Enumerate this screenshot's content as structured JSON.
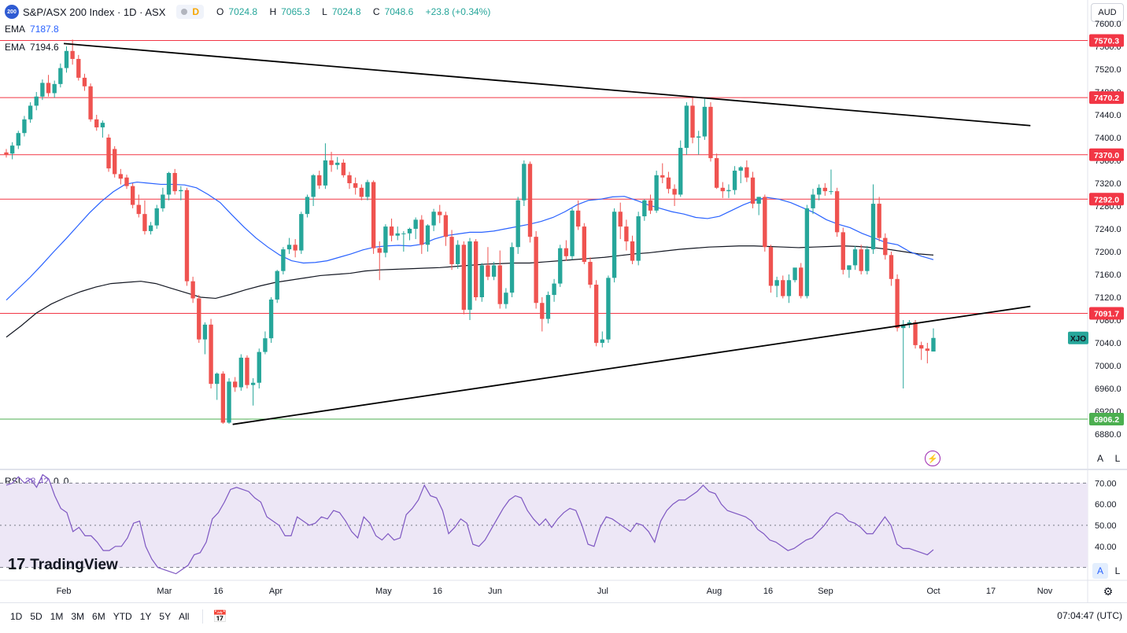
{
  "header": {
    "badge": "200",
    "title": "S&P/ASX 200 Index · 1D · ASX",
    "mode": "D",
    "open_label": "O",
    "open": "7024.8",
    "high_label": "H",
    "high": "7065.3",
    "low_label": "L",
    "low": "7024.8",
    "close_label": "C",
    "close": "7048.6",
    "change": "+23.8 (+0.34%)"
  },
  "ema_fast": {
    "label": "EMA",
    "value": "7187.8",
    "color": "#2962ff"
  },
  "ema_slow": {
    "label": "EMA",
    "value": "7194.6",
    "color": "#131722"
  },
  "rsi_legend": {
    "label": "RSI",
    "value": "38.42",
    "extra1": "0",
    "extra2": "0",
    "color": "#7e57c2"
  },
  "currency": "AUD",
  "axis_buttons": {
    "auto": "A",
    "log": "L"
  },
  "symbol_tag": "XJO",
  "brand": "TradingView",
  "ranges": [
    "1D",
    "5D",
    "1M",
    "3M",
    "6M",
    "YTD",
    "1Y",
    "5Y",
    "All"
  ],
  "clock": "07:04:47 (UTC)",
  "colors": {
    "up": "#26a69a",
    "down": "#ef5350",
    "level": "#f23645",
    "support": "#4caf50",
    "trend": "#000000",
    "rsi_band": "#ede7f6"
  },
  "chart_data": {
    "type": "candlestick",
    "y_ticks": [
      "7600.0",
      "7560.0",
      "7520.0",
      "7480.0",
      "7440.0",
      "7400.0",
      "7360.0",
      "7320.0",
      "7280.0",
      "7240.0",
      "7200.0",
      "7160.0",
      "7120.0",
      "7080.0",
      "7040.0",
      "7000.0",
      "6960.0",
      "6920.0",
      "6880.0"
    ],
    "ylim": [
      6860,
      7610
    ],
    "x_labels": [
      "Feb",
      "Mar",
      "16",
      "Apr",
      "May",
      "16",
      "Jun",
      "Jul",
      "Aug",
      "16",
      "Sep",
      "Oct",
      "17",
      "Nov"
    ],
    "resistance_levels": [
      "7570.3",
      "7470.2",
      "7370.0",
      "7292.0",
      "7091.7"
    ],
    "support_levels": [
      "6906.2"
    ],
    "last_price": "7048.6",
    "trendlines": [
      {
        "name": "upper",
        "from": {
          "date": "2023-02-01",
          "value": 7565
        },
        "to": {
          "date": "2023-10-28",
          "value": 7421
        }
      },
      {
        "name": "lower",
        "from": {
          "date": "2023-03-20",
          "value": 6897
        },
        "to": {
          "date": "2023-10-28",
          "value": 7104
        }
      }
    ],
    "candles": [
      [
        7374,
        7380,
        7365,
        7370
      ],
      [
        7372,
        7392,
        7362,
        7386
      ],
      [
        7386,
        7412,
        7380,
        7408
      ],
      [
        7408,
        7438,
        7402,
        7432
      ],
      [
        7432,
        7462,
        7426,
        7456
      ],
      [
        7456,
        7480,
        7448,
        7472
      ],
      [
        7472,
        7502,
        7466,
        7496
      ],
      [
        7496,
        7510,
        7472,
        7478
      ],
      [
        7478,
        7500,
        7470,
        7494
      ],
      [
        7494,
        7530,
        7488,
        7522
      ],
      [
        7522,
        7560,
        7514,
        7552
      ],
      [
        7552,
        7572,
        7528,
        7538
      ],
      [
        7538,
        7545,
        7500,
        7505
      ],
      [
        7505,
        7512,
        7482,
        7490
      ],
      [
        7490,
        7495,
        7428,
        7432
      ],
      [
        7432,
        7440,
        7412,
        7418
      ],
      [
        7418,
        7430,
        7400,
        7426
      ],
      [
        7400,
        7406,
        7340,
        7346
      ],
      [
        7380,
        7385,
        7330,
        7336
      ],
      [
        7336,
        7345,
        7318,
        7328
      ],
      [
        7330,
        7335,
        7310,
        7315
      ],
      [
        7315,
        7320,
        7276,
        7282
      ],
      [
        7282,
        7300,
        7260,
        7266
      ],
      [
        7266,
        7290,
        7230,
        7236
      ],
      [
        7236,
        7252,
        7230,
        7246
      ],
      [
        7246,
        7282,
        7240,
        7276
      ],
      [
        7276,
        7312,
        7270,
        7300
      ],
      [
        7300,
        7340,
        7290,
        7338
      ],
      [
        7338,
        7345,
        7300,
        7306
      ],
      [
        7306,
        7315,
        7290,
        7308
      ],
      [
        7308,
        7312,
        7140,
        7148
      ],
      [
        7148,
        7156,
        7110,
        7118
      ],
      [
        7118,
        7124,
        7040,
        7046
      ],
      [
        7046,
        7076,
        7020,
        7072
      ],
      [
        7072,
        7082,
        6960,
        6968
      ],
      [
        6968,
        6988,
        6940,
        6986
      ],
      [
        6986,
        6990,
        6898,
        6900
      ],
      [
        6900,
        6978,
        6898,
        6972
      ],
      [
        6972,
        6980,
        6954,
        6962
      ],
      [
        6962,
        7020,
        6956,
        7014
      ],
      [
        7014,
        7018,
        6960,
        6966
      ],
      [
        6966,
        6978,
        6930,
        6970
      ],
      [
        6970,
        7030,
        6960,
        7024
      ],
      [
        7024,
        7060,
        7020,
        7048
      ],
      [
        7048,
        7120,
        7040,
        7116
      ],
      [
        7116,
        7168,
        7110,
        7166
      ],
      [
        7166,
        7208,
        7160,
        7204
      ],
      [
        7204,
        7224,
        7196,
        7212
      ],
      [
        7212,
        7222,
        7190,
        7202
      ],
      [
        7202,
        7270,
        7196,
        7266
      ],
      [
        7266,
        7300,
        7260,
        7296
      ],
      [
        7296,
        7336,
        7280,
        7334
      ],
      [
        7334,
        7342,
        7310,
        7316
      ],
      [
        7316,
        7390,
        7310,
        7360
      ],
      [
        7360,
        7375,
        7340,
        7352
      ],
      [
        7352,
        7366,
        7344,
        7356
      ],
      [
        7356,
        7362,
        7330,
        7334
      ],
      [
        7334,
        7340,
        7310,
        7320
      ],
      [
        7320,
        7330,
        7300,
        7312
      ],
      [
        7312,
        7318,
        7290,
        7296
      ],
      [
        7296,
        7326,
        7290,
        7322
      ],
      [
        7322,
        7325,
        7196,
        7206
      ],
      [
        7206,
        7218,
        7150,
        7198
      ],
      [
        7198,
        7248,
        7190,
        7244
      ],
      [
        7244,
        7258,
        7218,
        7228
      ],
      [
        7228,
        7244,
        7220,
        7232
      ],
      [
        7232,
        7236,
        7200,
        7232
      ],
      [
        7232,
        7242,
        7220,
        7240
      ],
      [
        7240,
        7260,
        7222,
        7256
      ],
      [
        7256,
        7264,
        7196,
        7212
      ],
      [
        7212,
        7248,
        7200,
        7246
      ],
      [
        7246,
        7275,
        7236,
        7270
      ],
      [
        7270,
        7282,
        7250,
        7264
      ],
      [
        7264,
        7270,
        7210,
        7226
      ],
      [
        7226,
        7238,
        7168,
        7178
      ],
      [
        7178,
        7220,
        7170,
        7212
      ],
      [
        7212,
        7218,
        7090,
        7098
      ],
      [
        7098,
        7224,
        7080,
        7218
      ],
      [
        7218,
        7222,
        7114,
        7120
      ],
      [
        7120,
        7180,
        7112,
        7176
      ],
      [
        7176,
        7208,
        7150,
        7156
      ],
      [
        7156,
        7182,
        7150,
        7176
      ],
      [
        7176,
        7202,
        7100,
        7108
      ],
      [
        7108,
        7136,
        7100,
        7128
      ],
      [
        7128,
        7216,
        7120,
        7208
      ],
      [
        7208,
        7296,
        7196,
        7290
      ],
      [
        7290,
        7360,
        7280,
        7354
      ],
      [
        7354,
        7358,
        7216,
        7226
      ],
      [
        7226,
        7236,
        7100,
        7110
      ],
      [
        7110,
        7120,
        7060,
        7082
      ],
      [
        7082,
        7130,
        7074,
        7124
      ],
      [
        7124,
        7152,
        7112,
        7144
      ],
      [
        7144,
        7212,
        7138,
        7206
      ],
      [
        7206,
        7220,
        7184,
        7192
      ],
      [
        7192,
        7276,
        7186,
        7272
      ],
      [
        7272,
        7290,
        7238,
        7244
      ],
      [
        7244,
        7250,
        7178,
        7182
      ],
      [
        7182,
        7190,
        7136,
        7142
      ],
      [
        7142,
        7150,
        7034,
        7040
      ],
      [
        7040,
        7060,
        7032,
        7046
      ],
      [
        7046,
        7158,
        7040,
        7154
      ],
      [
        7154,
        7276,
        7146,
        7270
      ],
      [
        7270,
        7286,
        7222,
        7244
      ],
      [
        7244,
        7256,
        7202,
        7218
      ],
      [
        7218,
        7228,
        7178,
        7184
      ],
      [
        7184,
        7270,
        7176,
        7262
      ],
      [
        7262,
        7292,
        7254,
        7290
      ],
      [
        7290,
        7300,
        7266,
        7272
      ],
      [
        7272,
        7342,
        7268,
        7334
      ],
      [
        7334,
        7355,
        7320,
        7330
      ],
      [
        7330,
        7340,
        7302,
        7310
      ],
      [
        7310,
        7318,
        7280,
        7300
      ],
      [
        7300,
        7395,
        7296,
        7382
      ],
      [
        7382,
        7462,
        7370,
        7456
      ],
      [
        7456,
        7470,
        7390,
        7400
      ],
      [
        7400,
        7412,
        7370,
        7402
      ],
      [
        7402,
        7468,
        7396,
        7454
      ],
      [
        7454,
        7462,
        7358,
        7364
      ],
      [
        7364,
        7372,
        7310,
        7312
      ],
      [
        7312,
        7322,
        7294,
        7306
      ],
      [
        7306,
        7318,
        7294,
        7308
      ],
      [
        7308,
        7350,
        7300,
        7342
      ],
      [
        7342,
        7350,
        7320,
        7348
      ],
      [
        7348,
        7360,
        7322,
        7330
      ],
      [
        7330,
        7340,
        7276,
        7284
      ],
      [
        7284,
        7296,
        7264,
        7296
      ],
      [
        7296,
        7300,
        7200,
        7208
      ],
      [
        7208,
        7212,
        7128,
        7140
      ],
      [
        7140,
        7156,
        7120,
        7150
      ],
      [
        7150,
        7158,
        7118,
        7122
      ],
      [
        7122,
        7160,
        7110,
        7150
      ],
      [
        7150,
        7170,
        7146,
        7172
      ],
      [
        7172,
        7180,
        7118,
        7122
      ],
      [
        7122,
        7282,
        7118,
        7276
      ],
      [
        7276,
        7310,
        7266,
        7300
      ],
      [
        7300,
        7318,
        7290,
        7312
      ],
      [
        7312,
        7320,
        7298,
        7306
      ],
      [
        7306,
        7344,
        7300,
        7306
      ],
      [
        7306,
        7312,
        7226,
        7234
      ],
      [
        7234,
        7242,
        7160,
        7168
      ],
      [
        7168,
        7176,
        7154,
        7176
      ],
      [
        7176,
        7210,
        7168,
        7204
      ],
      [
        7204,
        7212,
        7160,
        7166
      ],
      [
        7166,
        7210,
        7160,
        7204
      ],
      [
        7204,
        7318,
        7196,
        7284
      ],
      [
        7284,
        7296,
        7218,
        7224
      ],
      [
        7224,
        7232,
        7186,
        7194
      ],
      [
        7194,
        7200,
        7140,
        7152
      ],
      [
        7152,
        7160,
        7060,
        7066
      ],
      [
        7066,
        7080,
        6960,
        7072
      ],
      [
        7072,
        7080,
        7066,
        7076
      ],
      [
        7076,
        7080,
        7030,
        7036
      ],
      [
        7036,
        7042,
        7010,
        7030
      ],
      [
        7030,
        7040,
        7004,
        7026
      ],
      [
        7024.8,
        7065.3,
        7024.8,
        7048.6
      ]
    ],
    "ema_fast_series": {
      "name": "EMA",
      "value": 7187.8,
      "values": [
        7115,
        7135,
        7155,
        7177,
        7200,
        7222,
        7245,
        7268,
        7288,
        7305,
        7318,
        7322,
        7320,
        7318,
        7318,
        7317,
        7312,
        7300,
        7286,
        7264,
        7243,
        7224,
        7208,
        7194,
        7184,
        7180,
        7181,
        7184,
        7190,
        7196,
        7203,
        7208,
        7210,
        7211,
        7210,
        7213,
        7222,
        7228,
        7231,
        7234,
        7234,
        7236,
        7240,
        7244,
        7248,
        7253,
        7260,
        7270,
        7282,
        7290,
        7292,
        7296,
        7297,
        7290,
        7282,
        7276,
        7270,
        7266,
        7260,
        7258,
        7262,
        7272,
        7282,
        7290,
        7295,
        7292,
        7286,
        7277,
        7268,
        7256,
        7248,
        7242,
        7232,
        7224,
        7216,
        7212,
        7200,
        7192,
        7186
      ]
    },
    "ema_slow_series": {
      "name": "EMA",
      "value": 7194.6,
      "values": [
        7050,
        7070,
        7092,
        7108,
        7120,
        7130,
        7138,
        7144,
        7146,
        7148,
        7144,
        7136,
        7128,
        7120,
        7118,
        7125,
        7133,
        7140,
        7146,
        7150,
        7154,
        7158,
        7160,
        7162,
        7166,
        7168,
        7169,
        7170,
        7171,
        7172,
        7174,
        7176,
        7178,
        7179,
        7180,
        7180,
        7182,
        7184,
        7186,
        7188,
        7190,
        7193,
        7196,
        7198,
        7201,
        7204,
        7206,
        7208,
        7209,
        7210,
        7210,
        7209,
        7208,
        7207,
        7208,
        7209,
        7210,
        7209,
        7207,
        7204,
        7200,
        7196,
        7194
      ]
    },
    "rsi": {
      "name": "RSI",
      "value": 38.42,
      "levels": [
        70,
        50,
        30
      ],
      "values": [
        69,
        70,
        73,
        70,
        72,
        68,
        74,
        72,
        64,
        58,
        56,
        47,
        49,
        45,
        45,
        42,
        38,
        38,
        40,
        40,
        44,
        51,
        52,
        40,
        34,
        30,
        29,
        28,
        27,
        29,
        31,
        36,
        37,
        42,
        53,
        56,
        61,
        67,
        68,
        67,
        66,
        63,
        61,
        54,
        52,
        50,
        45,
        45,
        54,
        52,
        50,
        51,
        54,
        53,
        57,
        56,
        52,
        47,
        44,
        54,
        51,
        45,
        43,
        46,
        43,
        44,
        55,
        58,
        62,
        69,
        64,
        63,
        57,
        46,
        49,
        53,
        51,
        41,
        40,
        43,
        48,
        53,
        58,
        62,
        64,
        63,
        57,
        53,
        50,
        53,
        49,
        53,
        56,
        58,
        57,
        50,
        41,
        40,
        49,
        54,
        53,
        51,
        49,
        47,
        51,
        50,
        47,
        42,
        52,
        57,
        60,
        62,
        62,
        64,
        66,
        69,
        66,
        65,
        60,
        57,
        56,
        55,
        54,
        52,
        48,
        46,
        43,
        42,
        40,
        38,
        39,
        41,
        43,
        44,
        47,
        50,
        54,
        56,
        55,
        52,
        51,
        49,
        46,
        46,
        50,
        54,
        50,
        41,
        39,
        39,
        38,
        37,
        36,
        38.42
      ]
    }
  }
}
